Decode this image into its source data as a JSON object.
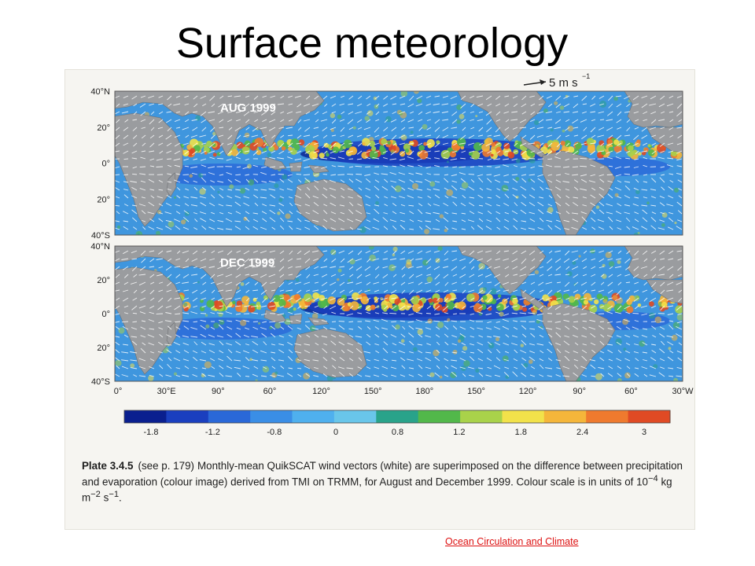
{
  "slide": {
    "title": "Surface meteorology",
    "source_link": "Ocean Circulation and Climate"
  },
  "figure": {
    "scale_arrow_label": "5 m s",
    "scale_arrow_exponent": "−1",
    "panels": [
      {
        "label": "AUG 1999"
      },
      {
        "label": "DEC 1999"
      }
    ],
    "lat_labels": [
      "40°N",
      "20°",
      "0°",
      "20°",
      "40°S"
    ],
    "lon_labels": [
      "0°",
      "30°E",
      "90°",
      "60°",
      "120°",
      "150°",
      "180°",
      "150°",
      "120°",
      "90°",
      "60°",
      "30°W"
    ],
    "colour_scale": {
      "tick_labels": [
        "-1.8",
        "-1.2",
        "-0.8",
        "0",
        "0.8",
        "1.2",
        "1.8",
        "2.4",
        "3"
      ],
      "colors": [
        "#0a1f8f",
        "#1a3fbf",
        "#2a68d8",
        "#3a8ee6",
        "#4fb0ee",
        "#69c6ea",
        "#29a38a",
        "#52b84a",
        "#a9d24a",
        "#f2e24a",
        "#f5b63a",
        "#ef7a2e",
        "#e04a24"
      ]
    },
    "land_color": "#9a9c9f",
    "ocean_color": "#3f96de"
  },
  "caption": {
    "plate": "Plate 3.4.5",
    "ref": "(see p. 179)",
    "text_a": "Monthly-mean QuikSCAT wind vectors (white) are superimposed on the difference between precipitation and evaporation (colour image) derived from TMI on TRMM, for August and December 1999. Colour scale is in units of 10",
    "exp1": "−4",
    "text_b": " kg m",
    "exp2": "−2",
    "text_c": " s",
    "exp3": "−1",
    "text_d": "."
  }
}
